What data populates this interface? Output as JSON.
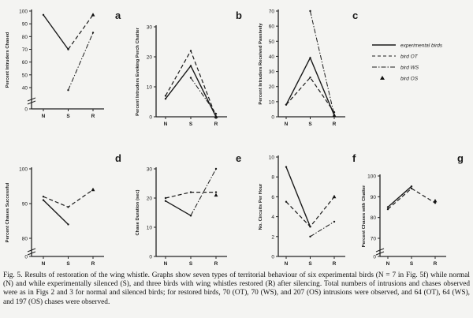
{
  "legend": {
    "entries": [
      {
        "label": "experimental birds",
        "style": "solid"
      },
      {
        "label": "bird OT",
        "style": "dashed"
      },
      {
        "label": "bird WS",
        "style": "dashdot"
      },
      {
        "label": "bird OS",
        "style": "triangle"
      }
    ]
  },
  "caption": "Fig. 5. Results of restoration of the wing whistle. Graphs show seven types of territorial behaviour of six experimental birds (N = 7 in Fig. 5f) while normal (N) and while experimentally silenced (S), and three birds with wing whistles restored (R) after silencing. Total numbers of intrusions and chases observed were as in Figs 2 and 3 for normal and silenced birds; for restored birds, 70 (OT), 70 (WS), and 207 (OS) intrusions were observed, and 64 (OT), 64 (WS), and 197 (OS) chases were observed.",
  "chart_data": [
    {
      "type": "line",
      "panel": "a",
      "ylabel": "Percent Intruders Chased",
      "categories": [
        "N",
        "S",
        "R"
      ],
      "ylim": [
        0,
        100
      ],
      "yticks": [
        0,
        40,
        50,
        60,
        70,
        80,
        90,
        100
      ],
      "axis_break": true,
      "series": [
        {
          "key": "experimental",
          "values": [
            97,
            70,
            null
          ]
        },
        {
          "key": "OT",
          "values": [
            null,
            70,
            97
          ]
        },
        {
          "key": "WS",
          "values": [
            null,
            38,
            83
          ]
        },
        {
          "key": "OS",
          "values": [
            null,
            null,
            97
          ]
        }
      ]
    },
    {
      "type": "line",
      "panel": "b",
      "ylabel": "Percent Intruders Evoking Perch Chatter",
      "categories": [
        "N",
        "S",
        "R"
      ],
      "ylim": [
        0,
        30
      ],
      "yticks": [
        0,
        10,
        20,
        30
      ],
      "axis_break": false,
      "series": [
        {
          "key": "experimental",
          "values": [
            6,
            17,
            0
          ]
        },
        {
          "key": "OT",
          "values": [
            7,
            22,
            0
          ]
        },
        {
          "key": "WS",
          "values": [
            null,
            13,
            1
          ]
        },
        {
          "key": "OS",
          "values": [
            null,
            null,
            0
          ]
        }
      ]
    },
    {
      "type": "line",
      "panel": "c",
      "ylabel": "Percent Intruders Received Passively",
      "categories": [
        "N",
        "S",
        "R"
      ],
      "ylim": [
        0,
        70
      ],
      "yticks": [
        0,
        10,
        20,
        30,
        40,
        50,
        60,
        70
      ],
      "axis_break": false,
      "series": [
        {
          "key": "experimental",
          "values": [
            8,
            39,
            1
          ]
        },
        {
          "key": "OT",
          "values": [
            8,
            26,
            3
          ]
        },
        {
          "key": "WS",
          "values": [
            null,
            70,
            1
          ]
        },
        {
          "key": "OS",
          "values": [
            null,
            null,
            1
          ]
        }
      ]
    },
    {
      "type": "line",
      "panel": "d",
      "ylabel": "Percent Chases Successful",
      "categories": [
        "N",
        "S",
        "R"
      ],
      "ylim": [
        0,
        100
      ],
      "yticks": [
        0,
        80,
        90,
        100
      ],
      "axis_break": true,
      "series": [
        {
          "key": "experimental",
          "values": [
            91,
            84,
            null
          ]
        },
        {
          "key": "OT",
          "values": [
            92,
            89,
            94
          ]
        },
        {
          "key": "WS",
          "values": [
            null,
            null,
            94
          ]
        },
        {
          "key": "OS",
          "values": [
            null,
            null,
            94
          ]
        }
      ]
    },
    {
      "type": "line",
      "panel": "e",
      "ylabel": "Chase Duration (sec)",
      "categories": [
        "N",
        "S",
        "R"
      ],
      "ylim": [
        0,
        30
      ],
      "yticks": [
        0,
        10,
        20,
        30
      ],
      "axis_break": false,
      "series": [
        {
          "key": "experimental",
          "values": [
            19,
            14,
            null
          ]
        },
        {
          "key": "OT",
          "values": [
            20,
            22,
            22
          ]
        },
        {
          "key": "WS",
          "values": [
            null,
            14,
            30
          ]
        },
        {
          "key": "OS",
          "values": [
            null,
            null,
            21
          ]
        }
      ]
    },
    {
      "type": "line",
      "panel": "f",
      "ylabel": "No. Circuits Per Hour",
      "categories": [
        "N",
        "S",
        "R"
      ],
      "ylim": [
        0,
        10
      ],
      "yticks": [
        0,
        2,
        4,
        6,
        8,
        10
      ],
      "axis_break": false,
      "series": [
        {
          "key": "experimental",
          "values": [
            9,
            3,
            null
          ]
        },
        {
          "key": "OT",
          "values": [
            5.5,
            3,
            6
          ]
        },
        {
          "key": "WS",
          "values": [
            null,
            2,
            3.5
          ]
        },
        {
          "key": "OS",
          "values": [
            null,
            null,
            6
          ]
        }
      ]
    },
    {
      "type": "line",
      "panel": "g",
      "ylabel": "Percent Chases with Chatter",
      "categories": [
        "N",
        "S",
        "R"
      ],
      "ylim": [
        0,
        100
      ],
      "yticks": [
        0,
        70,
        80,
        90,
        100
      ],
      "axis_break": true,
      "series": [
        {
          "key": "experimental",
          "values": [
            85,
            95,
            null
          ]
        },
        {
          "key": "OT",
          "values": [
            84,
            94,
            87
          ]
        },
        {
          "key": "WS",
          "values": [
            null,
            null,
            null
          ]
        },
        {
          "key": "OS",
          "values": [
            null,
            null,
            88
          ]
        }
      ]
    }
  ]
}
